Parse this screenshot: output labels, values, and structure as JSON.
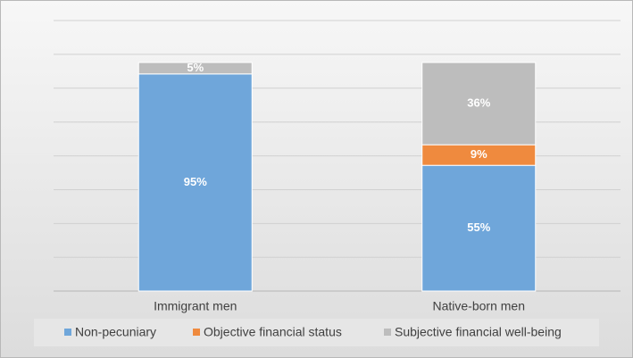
{
  "chart_data": {
    "type": "stacked_bar",
    "categories": [
      "Immigrant men",
      "Native-born men"
    ],
    "series": [
      {
        "name": "Non-pecuniary",
        "color": "#6fa6da",
        "values": [
          95,
          55
        ],
        "value_labels": [
          "95%",
          "55%"
        ]
      },
      {
        "name": "Objective financial status",
        "color": "#ef8a3e",
        "values": [
          null,
          9
        ],
        "value_labels": [
          null,
          "9%"
        ]
      },
      {
        "name": "Subjective financial well-being",
        "color": "#bdbdbd",
        "values": [
          5,
          36
        ],
        "value_labels": [
          "5%",
          "36%"
        ]
      }
    ],
    "ylim": [
      0,
      100
    ],
    "legend": "bottom"
  }
}
